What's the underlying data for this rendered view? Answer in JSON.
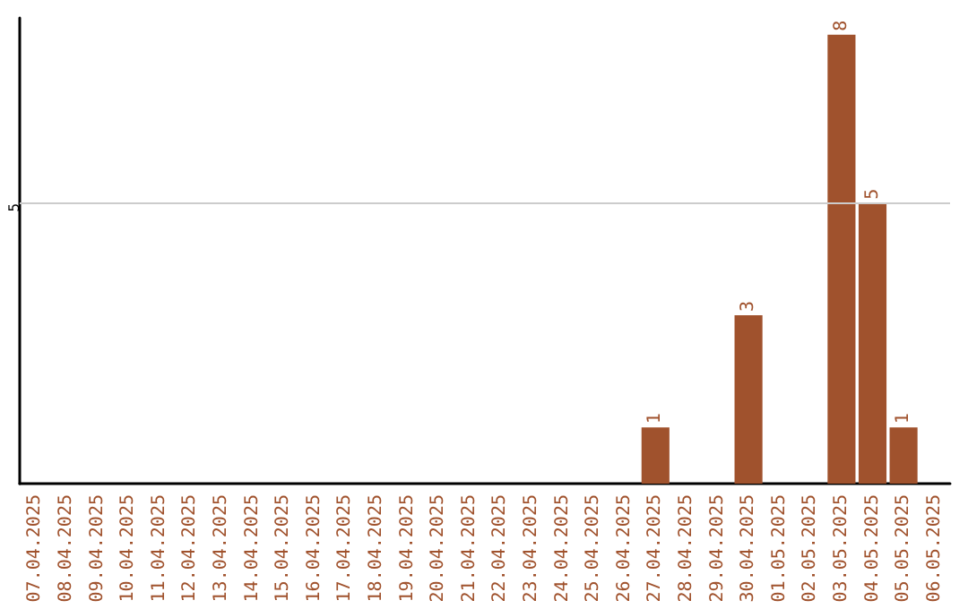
{
  "chart_data": {
    "type": "bar",
    "categories": [
      "07.04.2025",
      "08.04.2025",
      "09.04.2025",
      "10.04.2025",
      "11.04.2025",
      "12.04.2025",
      "13.04.2025",
      "14.04.2025",
      "15.04.2025",
      "16.04.2025",
      "17.04.2025",
      "18.04.2025",
      "19.04.2025",
      "20.04.2025",
      "21.04.2025",
      "22.04.2025",
      "23.04.2025",
      "24.04.2025",
      "25.04.2025",
      "26.04.2025",
      "27.04.2025",
      "28.04.2025",
      "29.04.2025",
      "30.04.2025",
      "01.05.2025",
      "02.05.2025",
      "03.05.2025",
      "04.05.2025",
      "05.05.2025",
      "06.05.2025"
    ],
    "values": [
      null,
      null,
      null,
      null,
      null,
      null,
      null,
      null,
      null,
      null,
      null,
      null,
      null,
      null,
      null,
      null,
      null,
      null,
      null,
      null,
      1,
      null,
      null,
      3,
      null,
      null,
      8,
      5,
      1,
      null
    ],
    "data_labels": true,
    "color": "#a0522d",
    "ylim": [
      0,
      8.3
    ],
    "ref_lines": [
      {
        "axis": "y",
        "value": 5,
        "label": "5",
        "color": "#cccccc"
      }
    ],
    "grid": false
  }
}
